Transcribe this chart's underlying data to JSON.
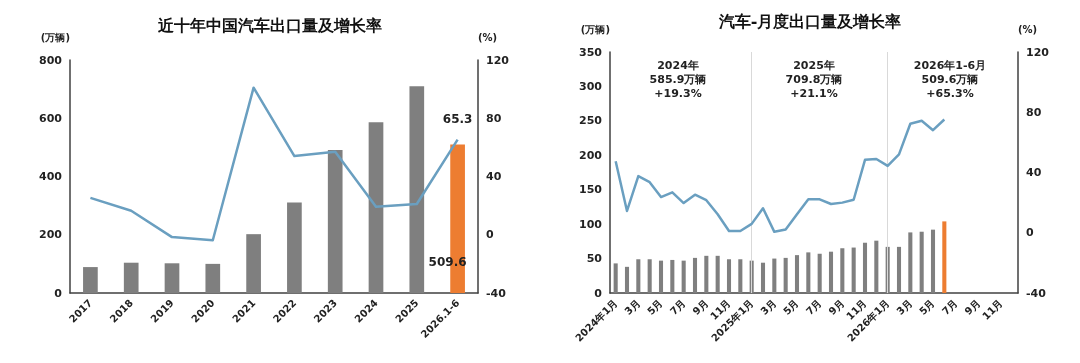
{
  "chart_data": [
    {
      "type": "bar",
      "title": "近十年中国汽车出口量及增长率",
      "ylabel": "(万辆)",
      "y2label": "(%)",
      "categories": [
        "2017",
        "2018",
        "2019",
        "2020",
        "2021",
        "2022",
        "2023",
        "2024",
        "2025",
        "2026.1-6"
      ],
      "series": [
        {
          "colors": [
            "#7f7f7f",
            "#7f7f7f",
            "#7f7f7f",
            "#7f7f7f",
            "#7f7f7f",
            "#7f7f7f",
            "#7f7f7f",
            "#7f7f7f",
            "#7f7f7f",
            "#ed7d31"
          ],
          "values": [
            89,
            104,
            102,
            100,
            202,
            311,
            491,
            586,
            710,
            509.6
          ],
          "value_labels": [
            null,
            null,
            null,
            null,
            null,
            null,
            null,
            null,
            null,
            "509.6"
          ]
        },
        {
          "type": "line",
          "axis": "y2",
          "color": "#6a9fc0",
          "values": [
            25.3,
            16.5,
            -1.6,
            -3.8,
            101,
            54,
            57,
            19.3,
            21.1,
            65.3
          ],
          "value_labels": [
            null,
            null,
            null,
            null,
            null,
            null,
            null,
            null,
            null,
            "65.3"
          ]
        }
      ],
      "ylim": [
        0,
        800
      ],
      "yticks": [
        0,
        200,
        400,
        600,
        800
      ],
      "y2lim": [
        -40,
        120
      ],
      "y2ticks": [
        -40,
        0,
        40,
        80,
        120
      ],
      "grid": false,
      "marker": "none"
    },
    {
      "type": "bar",
      "title": "汽车-月度出口量及增长率",
      "ylabel": "(万辆)",
      "y2label": "(%)",
      "categories": [
        "2024年1月",
        null,
        "3月",
        null,
        "5月",
        null,
        "7月",
        null,
        "9月",
        null,
        "11月",
        null,
        "2025年1月",
        null,
        "3月",
        null,
        "5月",
        null,
        "7月",
        null,
        "9月",
        null,
        "11月",
        null,
        "2026年1月",
        null,
        "3月",
        null,
        "5月",
        null,
        "7月",
        null,
        "9月",
        null,
        "11月",
        null
      ],
      "series": [
        {
          "colors": [
            "#7f7f7f",
            "#7f7f7f",
            "#7f7f7f",
            "#7f7f7f",
            "#7f7f7f",
            "#7f7f7f",
            "#7f7f7f",
            "#7f7f7f",
            "#7f7f7f",
            "#7f7f7f",
            "#7f7f7f",
            "#7f7f7f",
            "#7f7f7f",
            "#7f7f7f",
            "#7f7f7f",
            "#7f7f7f",
            "#7f7f7f",
            "#7f7f7f",
            "#7f7f7f",
            "#7f7f7f",
            "#7f7f7f",
            "#7f7f7f",
            "#7f7f7f",
            "#7f7f7f",
            "#7f7f7f",
            "#7f7f7f",
            "#7f7f7f",
            "#7f7f7f",
            "#7f7f7f",
            "#ed7d31",
            null,
            null,
            null,
            null,
            null,
            null
          ],
          "values": [
            43,
            38,
            49,
            49,
            47,
            48,
            47,
            51,
            54,
            54,
            49,
            49,
            47,
            44,
            50,
            51,
            55,
            59,
            57,
            60,
            65,
            66,
            73,
            76,
            67,
            67,
            88,
            89,
            92,
            104,
            null,
            null,
            null,
            null,
            null,
            null
          ]
        },
        {
          "type": "line",
          "axis": "y2",
          "color": "#6a9fc0",
          "values": [
            47.5,
            14.5,
            37.6,
            33.6,
            23.7,
            26.8,
            19.7,
            25.3,
            21.6,
            12.3,
            1.2,
            1.2,
            5.9,
            16.3,
            0.6,
            2.2,
            12.3,
            22.2,
            22.2,
            19.1,
            20,
            21.9,
            48.4,
            49,
            44.4,
            52,
            72.4,
            74.3,
            68.1,
            75.2,
            null,
            null,
            null,
            null,
            null,
            null
          ]
        }
      ],
      "ylim": [
        0,
        350
      ],
      "yticks": [
        0,
        50,
        100,
        150,
        200,
        250,
        300,
        350
      ],
      "y2lim": [
        -40,
        120
      ],
      "y2ticks": [
        -40,
        0,
        40,
        80,
        120
      ],
      "grid": false,
      "marker": "none",
      "ref_lines": [
        {
          "axis": "x",
          "value": "2025年1月",
          "color": "#d9d9d9"
        },
        {
          "axis": "x",
          "value": "2026年1月",
          "color": "#d9d9d9"
        }
      ],
      "annotations": [
        "2024年\n585.9万辆\n+19.3%",
        "2025年\n709.8万辆\n+21.1%",
        "2026年1-6月\n509.6万辆\n+65.3%"
      ]
    }
  ]
}
